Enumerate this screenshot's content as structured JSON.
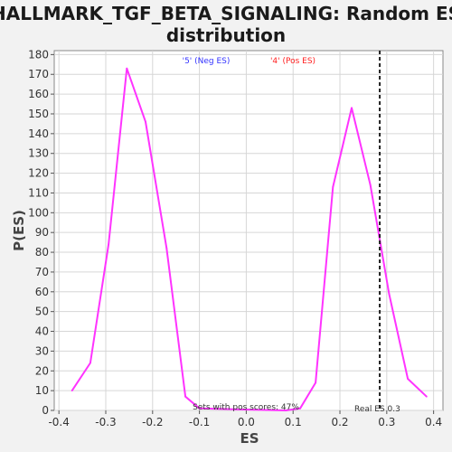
{
  "chart_data": {
    "type": "line",
    "title_line1": "HALLMARK_TGF_BETA_SIGNALING: Random ES",
    "title_line2": "distribution",
    "xlabel": "ES",
    "ylabel": "P(ES)",
    "xlim": [
      -0.41,
      0.42
    ],
    "ylim": [
      0,
      182
    ],
    "xticks": [
      -0.4,
      -0.3,
      -0.2,
      -0.1,
      0.0,
      0.1,
      0.2,
      0.3,
      0.4
    ],
    "xtick_labels": [
      "-0.4",
      "-0.3",
      "-0.2",
      "-0.1",
      "0.0",
      "0.1",
      "0.2",
      "0.3",
      "0.4"
    ],
    "yticks": [
      0,
      10,
      20,
      30,
      40,
      50,
      60,
      70,
      80,
      90,
      100,
      110,
      120,
      130,
      140,
      150,
      160,
      170,
      180
    ],
    "ytick_labels": [
      "0",
      "10",
      "20",
      "30",
      "40",
      "50",
      "60",
      "70",
      "80",
      "90",
      "100",
      "110",
      "120",
      "130",
      "140",
      "150",
      "160",
      "170",
      "180"
    ],
    "grid": true,
    "series": [
      {
        "x": [
          -0.372,
          -0.333,
          -0.294,
          -0.255,
          -0.215,
          -0.17,
          -0.13,
          -0.1,
          0.085,
          0.115,
          0.148,
          0.185,
          0.225,
          0.265,
          0.305,
          0.345,
          0.385
        ],
        "y": [
          10,
          24,
          84,
          173,
          146,
          82,
          7,
          1,
          0,
          1,
          14,
          113,
          153,
          114,
          59,
          16,
          7
        ],
        "color": "#ff33ff"
      }
    ],
    "real_es": 0.285,
    "real_es_label": "Real ES 0.3",
    "legend_neg": "'5' (Neg ES)",
    "legend_neg_color": "#3333ff",
    "legend_pos": "'4' (Pos ES)",
    "legend_pos_color": "#ff2020",
    "pos_scores_text": "Sets with pos scores: 47%"
  }
}
